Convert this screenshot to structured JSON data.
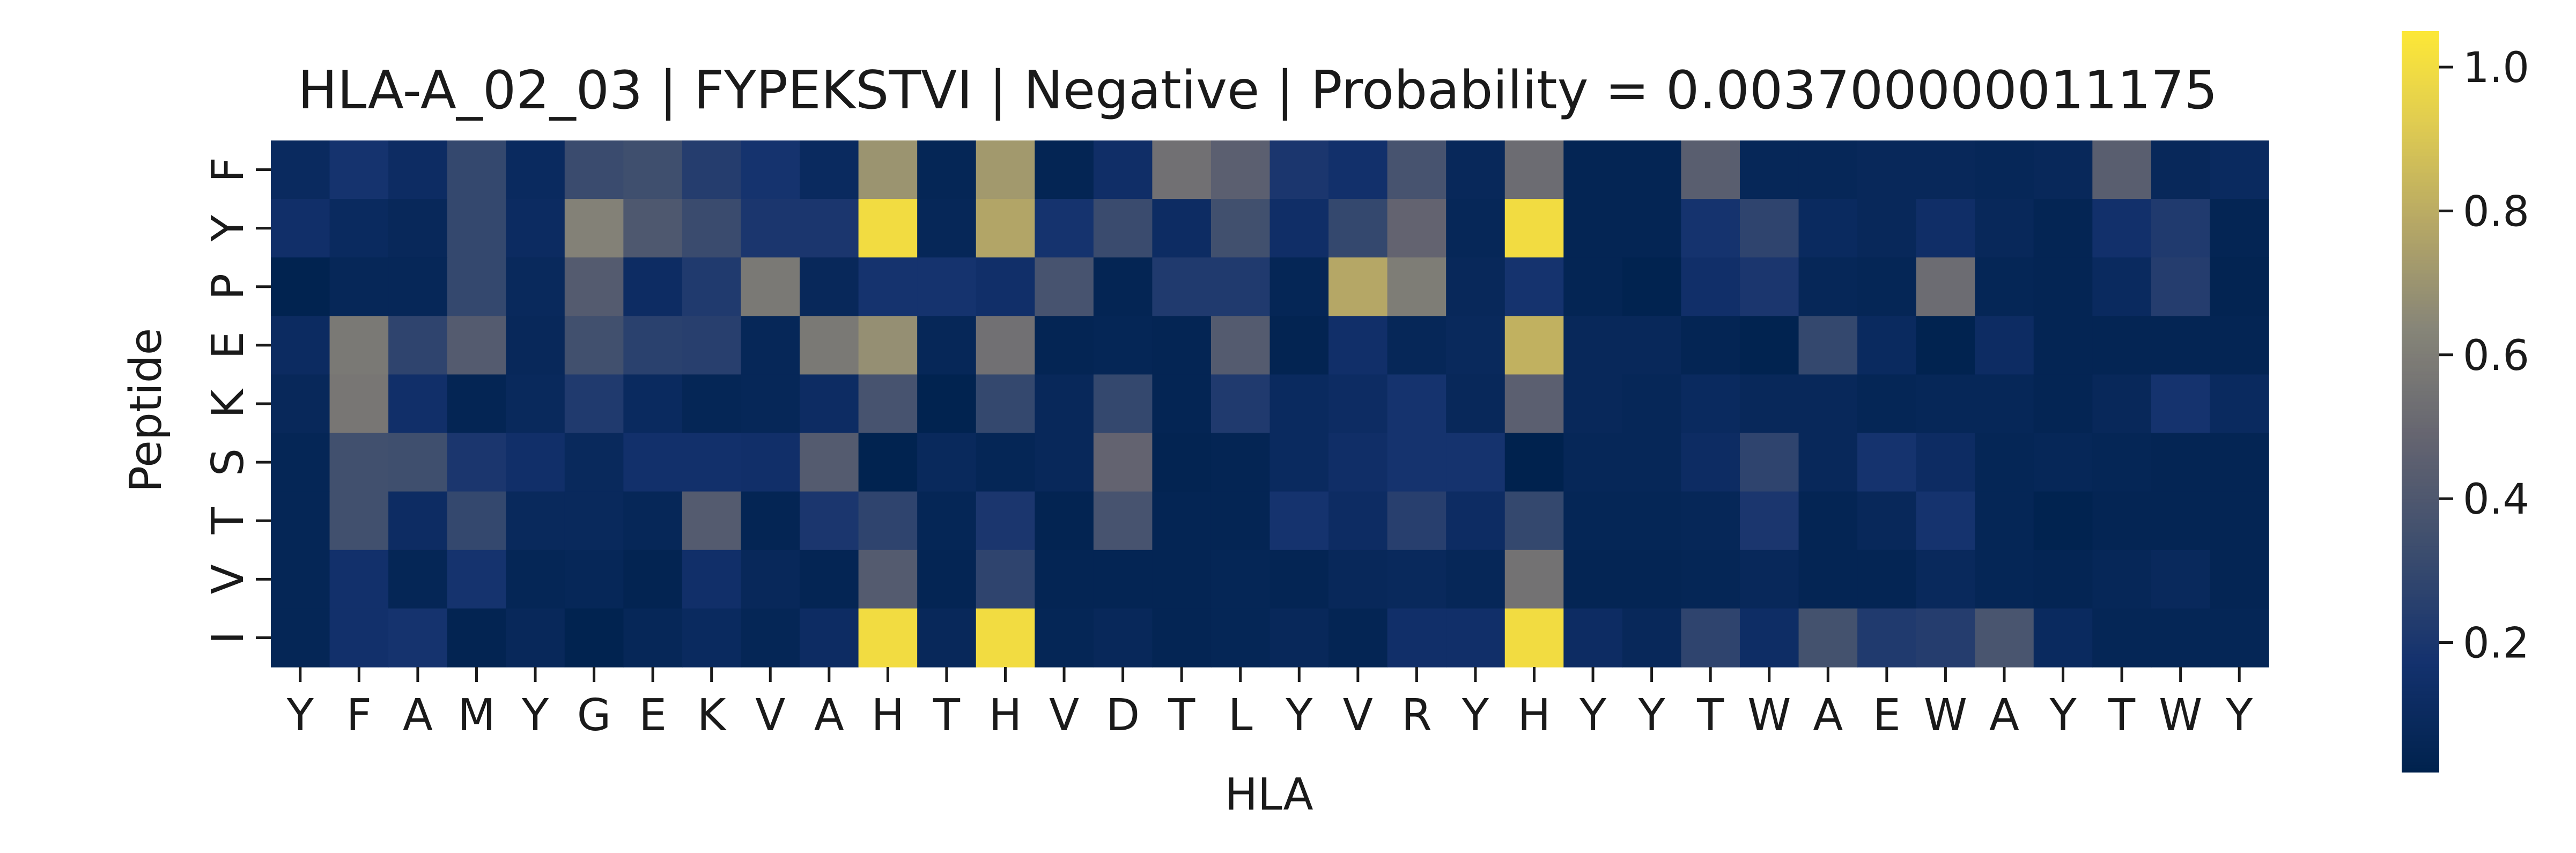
{
  "chart_data": {
    "type": "heatmap",
    "title": "HLA-A_02_03 | FYPEKSTVI | Negative | Probability = 0.003700000011175",
    "xlabel": "HLA",
    "ylabel": "Peptide",
    "x_categories": [
      "Y",
      "F",
      "A",
      "M",
      "Y",
      "G",
      "E",
      "K",
      "V",
      "A",
      "H",
      "T",
      "H",
      "V",
      "D",
      "T",
      "L",
      "Y",
      "V",
      "R",
      "Y",
      "H",
      "Y",
      "Y",
      "T",
      "W",
      "A",
      "E",
      "W",
      "A",
      "Y",
      "T",
      "W",
      "Y"
    ],
    "y_categories": [
      "F",
      "Y",
      "P",
      "E",
      "K",
      "S",
      "T",
      "V",
      "I"
    ],
    "values": [
      [
        0.1,
        0.18,
        0.12,
        0.3,
        0.1,
        0.32,
        0.34,
        0.24,
        0.18,
        0.1,
        0.7,
        0.06,
        0.72,
        0.05,
        0.14,
        0.54,
        0.45,
        0.2,
        0.16,
        0.37,
        0.08,
        0.52,
        0.05,
        0.05,
        0.44,
        0.07,
        0.07,
        0.08,
        0.08,
        0.07,
        0.08,
        0.44,
        0.08,
        0.1
      ],
      [
        0.15,
        0.1,
        0.08,
        0.3,
        0.11,
        0.62,
        0.4,
        0.32,
        0.2,
        0.2,
        1.0,
        0.07,
        0.77,
        0.18,
        0.32,
        0.12,
        0.35,
        0.14,
        0.3,
        0.48,
        0.07,
        1.0,
        0.05,
        0.05,
        0.18,
        0.28,
        0.1,
        0.08,
        0.14,
        0.08,
        0.05,
        0.16,
        0.22,
        0.05
      ],
      [
        0.03,
        0.07,
        0.07,
        0.3,
        0.09,
        0.42,
        0.12,
        0.22,
        0.58,
        0.08,
        0.18,
        0.18,
        0.15,
        0.37,
        0.05,
        0.22,
        0.22,
        0.06,
        0.78,
        0.6,
        0.08,
        0.18,
        0.05,
        0.03,
        0.15,
        0.2,
        0.07,
        0.06,
        0.52,
        0.06,
        0.05,
        0.1,
        0.24,
        0.04
      ],
      [
        0.11,
        0.58,
        0.28,
        0.42,
        0.08,
        0.35,
        0.26,
        0.25,
        0.07,
        0.58,
        0.68,
        0.07,
        0.54,
        0.05,
        0.06,
        0.05,
        0.42,
        0.04,
        0.15,
        0.07,
        0.09,
        0.82,
        0.08,
        0.08,
        0.05,
        0.03,
        0.3,
        0.1,
        0.03,
        0.12,
        0.05,
        0.05,
        0.05,
        0.05
      ],
      [
        0.08,
        0.57,
        0.15,
        0.05,
        0.09,
        0.22,
        0.1,
        0.06,
        0.07,
        0.12,
        0.37,
        0.03,
        0.3,
        0.08,
        0.3,
        0.05,
        0.22,
        0.1,
        0.12,
        0.18,
        0.08,
        0.45,
        0.08,
        0.07,
        0.1,
        0.08,
        0.08,
        0.06,
        0.07,
        0.07,
        0.05,
        0.08,
        0.18,
        0.1
      ],
      [
        0.06,
        0.35,
        0.34,
        0.2,
        0.15,
        0.09,
        0.16,
        0.16,
        0.15,
        0.42,
        0.03,
        0.09,
        0.06,
        0.08,
        0.48,
        0.04,
        0.05,
        0.1,
        0.14,
        0.18,
        0.18,
        0.02,
        0.07,
        0.07,
        0.12,
        0.28,
        0.08,
        0.18,
        0.12,
        0.06,
        0.07,
        0.06,
        0.05,
        0.05
      ],
      [
        0.06,
        0.35,
        0.12,
        0.3,
        0.09,
        0.09,
        0.07,
        0.42,
        0.05,
        0.2,
        0.28,
        0.06,
        0.2,
        0.04,
        0.37,
        0.05,
        0.05,
        0.18,
        0.12,
        0.25,
        0.12,
        0.3,
        0.06,
        0.06,
        0.07,
        0.2,
        0.05,
        0.08,
        0.18,
        0.06,
        0.03,
        0.05,
        0.05,
        0.05
      ],
      [
        0.06,
        0.16,
        0.06,
        0.18,
        0.06,
        0.07,
        0.04,
        0.15,
        0.08,
        0.05,
        0.42,
        0.05,
        0.28,
        0.05,
        0.05,
        0.05,
        0.06,
        0.05,
        0.08,
        0.09,
        0.07,
        0.55,
        0.05,
        0.05,
        0.06,
        0.08,
        0.05,
        0.05,
        0.09,
        0.06,
        0.05,
        0.07,
        0.09,
        0.05
      ],
      [
        0.06,
        0.16,
        0.18,
        0.04,
        0.08,
        0.03,
        0.07,
        0.1,
        0.06,
        0.12,
        1.0,
        0.08,
        1.0,
        0.06,
        0.08,
        0.05,
        0.06,
        0.08,
        0.05,
        0.15,
        0.15,
        1.0,
        0.12,
        0.08,
        0.28,
        0.13,
        0.36,
        0.22,
        0.24,
        0.38,
        0.1,
        0.06,
        0.06,
        0.06
      ]
    ],
    "colormap": "cividis",
    "colorbar": {
      "ticks": [
        0.2,
        0.4,
        0.6,
        0.8,
        1.0
      ],
      "range": [
        0.02,
        1.05
      ]
    }
  }
}
